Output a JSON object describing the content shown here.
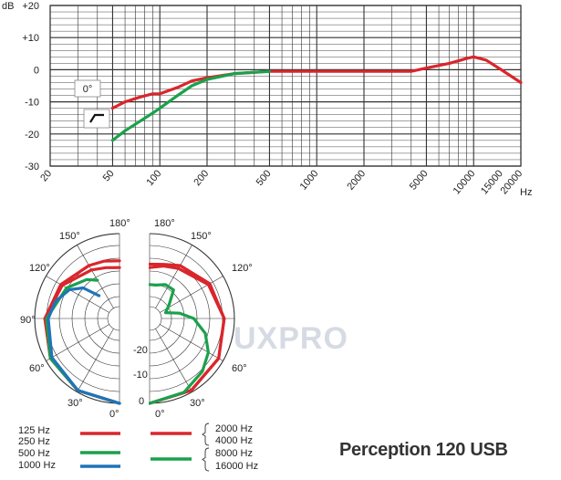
{
  "title": "Perception 120 USB",
  "watermark": "UXPRO",
  "colors": {
    "red": "#d9262c",
    "green": "#1aa14b",
    "blue": "#1f74b8",
    "grid": "#333333"
  },
  "chart_data": [
    {
      "type": "line",
      "ylabel": "dB",
      "xunit": "Hz",
      "x_scale": "log",
      "xlim": [
        20,
        20000
      ],
      "ylim": [
        -30,
        20
      ],
      "y_ticks": [
        {
          "value": 20,
          "label": "+20"
        },
        {
          "value": 10,
          "label": "+10"
        },
        {
          "value": 0,
          "label": "0"
        },
        {
          "value": -10,
          "label": "-10"
        },
        {
          "value": -20,
          "label": "-20"
        },
        {
          "value": -30,
          "label": "-30"
        }
      ],
      "x_ticks": [
        {
          "value": 20,
          "label": "20"
        },
        {
          "value": 50,
          "label": "50"
        },
        {
          "value": 100,
          "label": "100"
        },
        {
          "value": 200,
          "label": "200"
        },
        {
          "value": 500,
          "label": "500"
        },
        {
          "value": 1000,
          "label": "1000"
        },
        {
          "value": 2000,
          "label": "2000"
        },
        {
          "value": 5000,
          "label": "5000"
        },
        {
          "value": 10000,
          "label": "10000"
        },
        {
          "value": 15000,
          "label": "15000"
        },
        {
          "value": 20000,
          "label": "20000"
        }
      ],
      "annotations": [
        "0°"
      ],
      "series": [
        {
          "color": "red",
          "x": [
            50,
            60,
            75,
            90,
            100,
            130,
            160,
            200,
            300,
            500,
            1000,
            2000,
            4000,
            5000,
            7000,
            9000,
            10000,
            12000,
            15000,
            20000
          ],
          "y": [
            -12,
            -10,
            -8.5,
            -7.5,
            -7.5,
            -5.5,
            -3.5,
            -2.5,
            -1.2,
            -0.5,
            -0.5,
            -0.5,
            -0.5,
            0.5,
            2,
            3.5,
            4,
            3,
            0,
            -4
          ]
        },
        {
          "color": "green",
          "x": [
            50,
            60,
            75,
            90,
            100,
            130,
            160,
            200,
            300,
            500
          ],
          "y": [
            -22,
            -19,
            -16,
            -13.5,
            -12,
            -8,
            -5,
            -3,
            -1.2,
            -0.5
          ]
        }
      ]
    },
    {
      "type": "polar",
      "angle_labels": [
        "180°",
        "150°",
        "150°",
        "120°",
        "120°",
        "90°",
        "60°",
        "60°",
        "30°",
        "30°",
        "0°",
        "0°"
      ],
      "radius_labels": [
        "-20",
        "-10",
        "0"
      ],
      "rlim": [
        -25,
        0
      ],
      "legend": [
        {
          "labels": [
            "125 Hz",
            "250 Hz"
          ],
          "color": "red",
          "side": "left"
        },
        {
          "labels": [
            "500 Hz"
          ],
          "color": "green",
          "side": "left"
        },
        {
          "labels": [
            "1000 Hz"
          ],
          "color": "blue",
          "side": "left"
        },
        {
          "labels": [
            "2000 Hz",
            "4000 Hz"
          ],
          "color": "red",
          "side": "right"
        },
        {
          "labels": [
            "8000 Hz",
            "16000 Hz"
          ],
          "color": "green",
          "side": "right"
        }
      ],
      "left_series": [
        {
          "color": "red",
          "angles": [
            0,
            30,
            60,
            90,
            120,
            150,
            165,
            180
          ],
          "level_db": [
            0,
            -0.5,
            -1.5,
            -3,
            -5,
            -7,
            -7.5,
            -8
          ]
        },
        {
          "color": "red",
          "angles": [
            0,
            30,
            60,
            90,
            120,
            150,
            165,
            180
          ],
          "level_db": [
            0,
            -0.5,
            -1.5,
            -3,
            -5.5,
            -8.5,
            -9.5,
            -10
          ]
        },
        {
          "color": "green",
          "angles": [
            0,
            30,
            60,
            90,
            120,
            140,
            150
          ],
          "level_db": [
            0,
            -0.5,
            -1.5,
            -3.5,
            -7,
            -10,
            -12
          ]
        },
        {
          "color": "blue",
          "angles": [
            0,
            30,
            60,
            90,
            105,
            120,
            130,
            138
          ],
          "level_db": [
            0,
            -0.5,
            -2,
            -4,
            -5.5,
            -8,
            -11,
            -16
          ]
        }
      ],
      "right_series": [
        {
          "color": "red",
          "angles": [
            0,
            30,
            60,
            90,
            120,
            150,
            165,
            180
          ],
          "level_db": [
            0,
            -0.5,
            -1.5,
            -3,
            -5,
            -8,
            -9,
            -10
          ]
        },
        {
          "color": "red",
          "angles": [
            0,
            30,
            60,
            90,
            120,
            150,
            165,
            180
          ],
          "level_db": [
            0,
            -0.5,
            -1.5,
            -3,
            -4.5,
            -7,
            -8.5,
            -9
          ]
        },
        {
          "color": "green",
          "angles": [
            0,
            25,
            45,
            60,
            75,
            90,
            100,
            110,
            125,
            140,
            155,
            170,
            180
          ],
          "level_db": [
            0,
            -1,
            -3,
            -5,
            -8,
            -12,
            -16,
            -20,
            -18,
            -14,
            -14,
            -15,
            -15
          ]
        }
      ]
    }
  ]
}
